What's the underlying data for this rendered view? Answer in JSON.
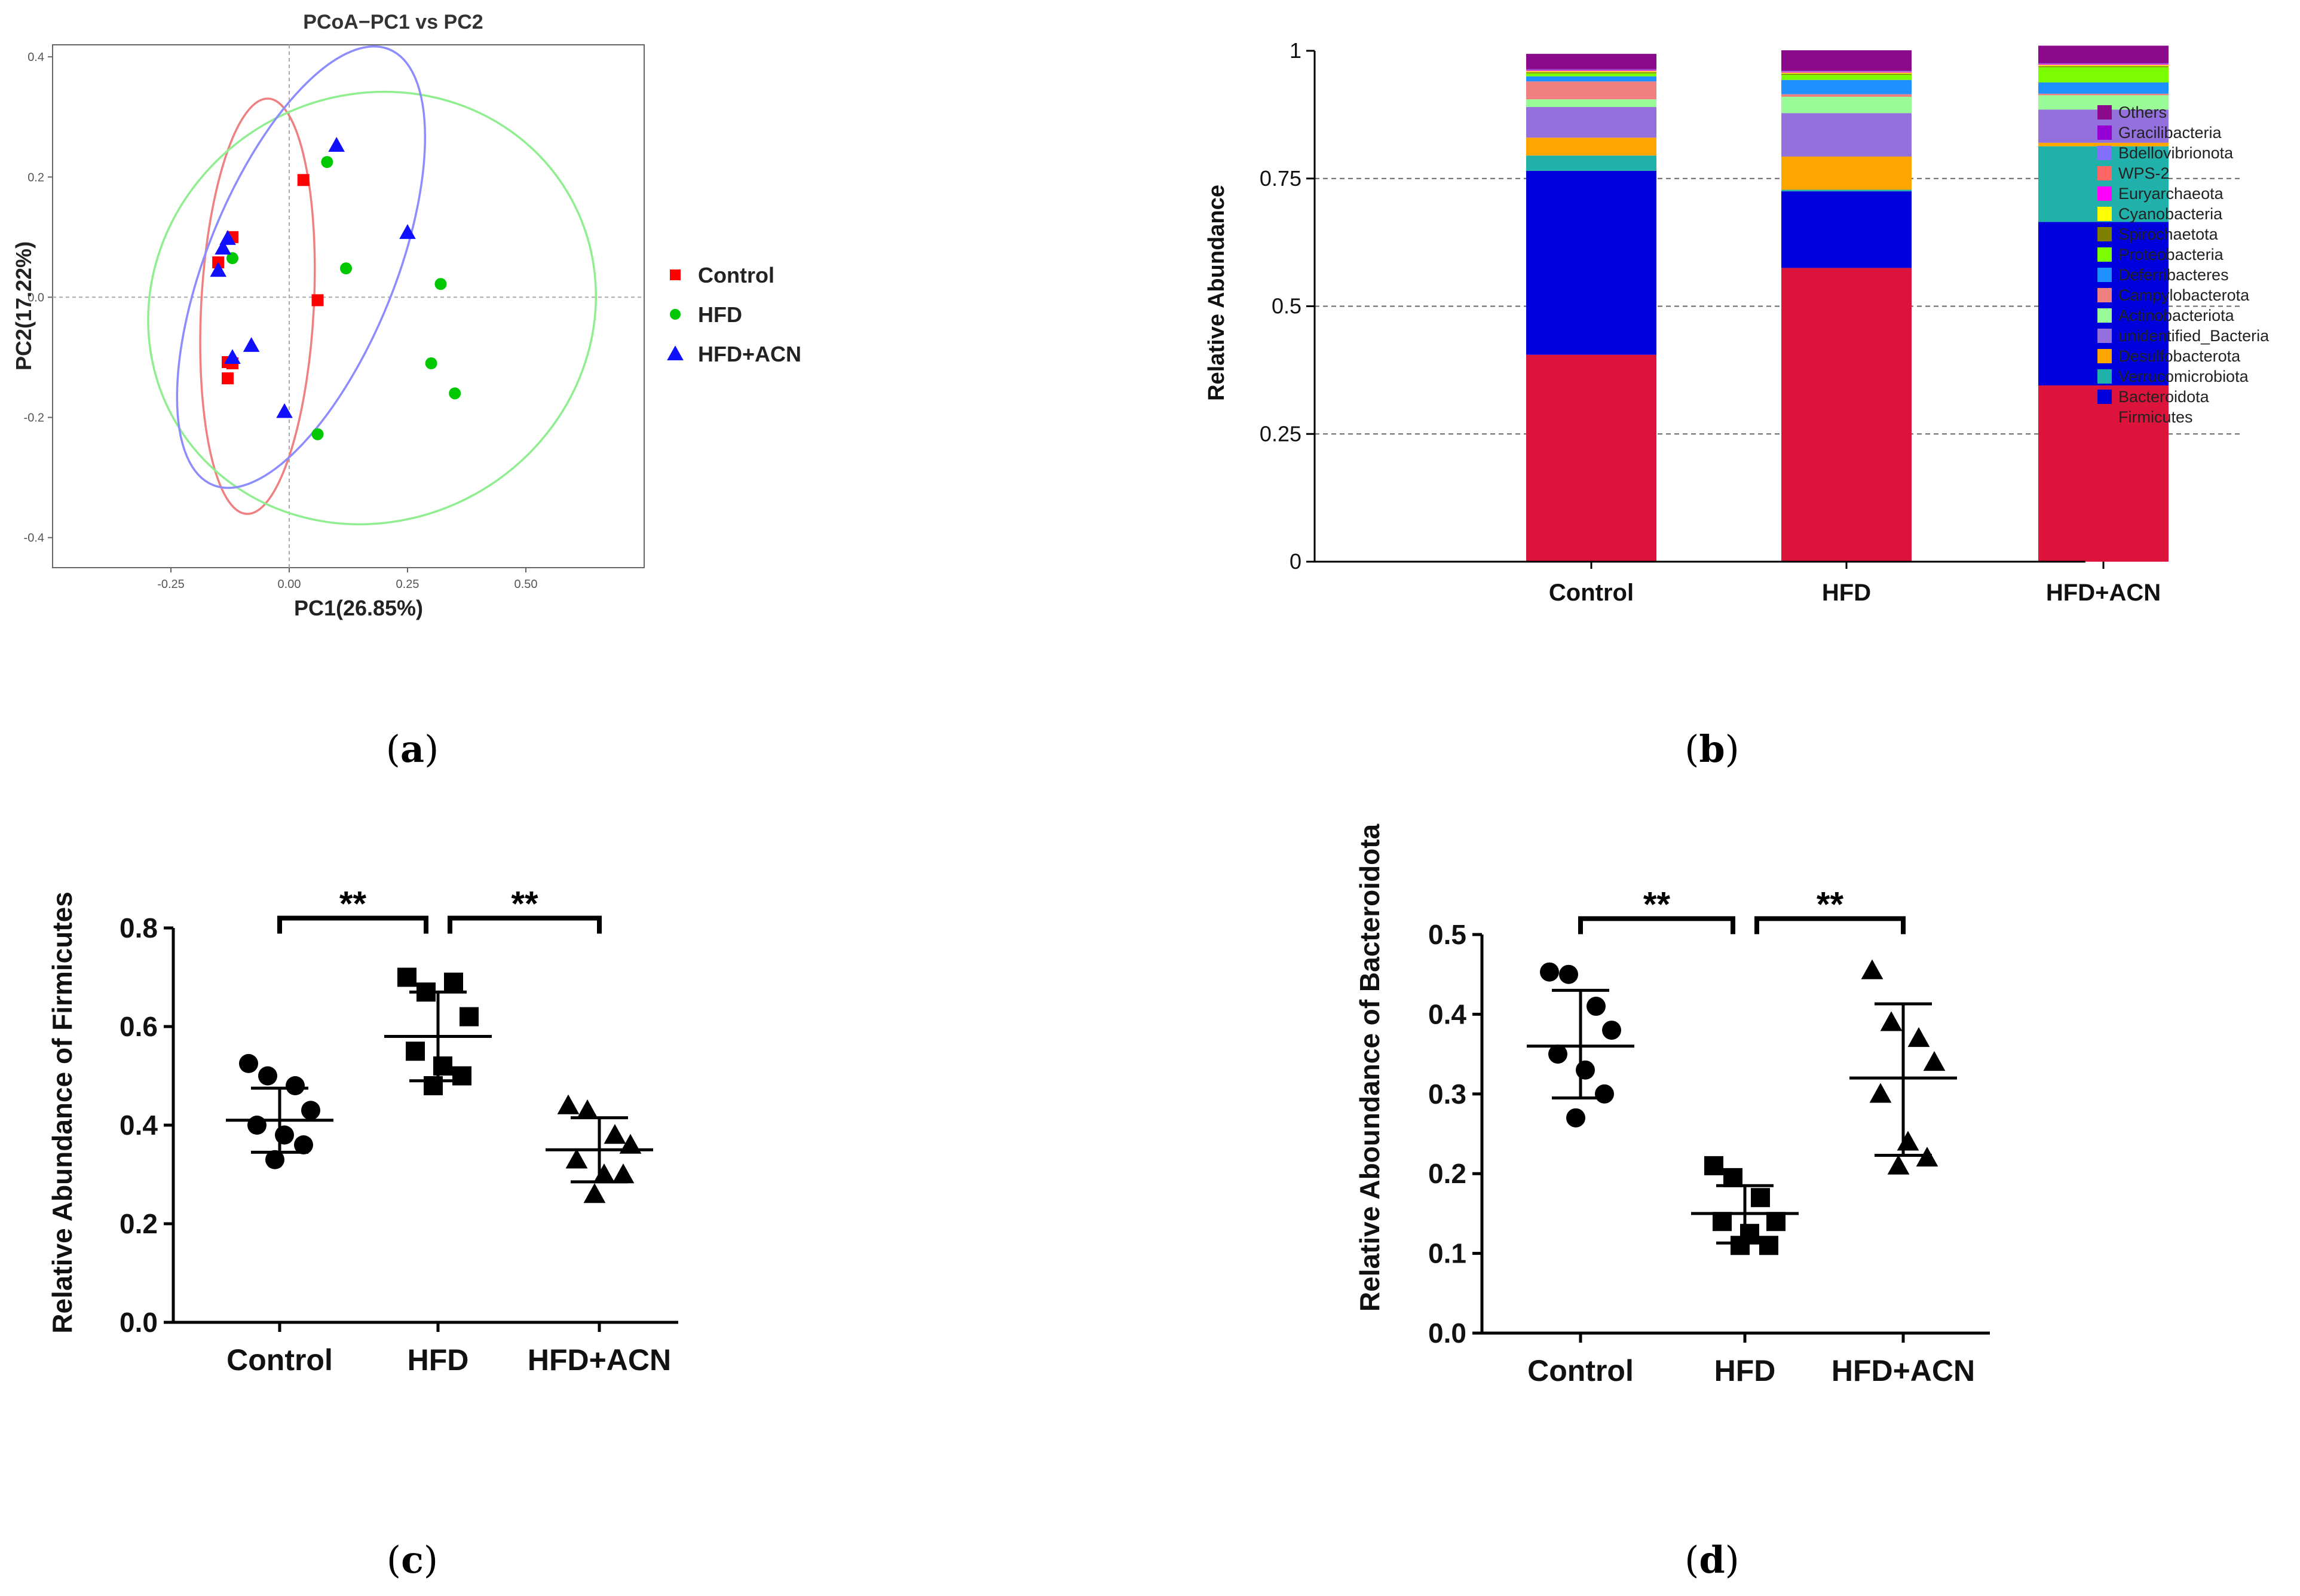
{
  "colors": {
    "control": "#ff0000",
    "hfd": "#00c800",
    "acn": "#1010ff",
    "ellipse_control": "#f08080",
    "ellipse_hfd": "#90ee90",
    "ellipse_acn": "#8c8cff"
  },
  "panel_labels": {
    "a": "a",
    "b": "b",
    "c": "c",
    "d": "d"
  },
  "chart_data": [
    {
      "panel": "a",
      "type": "scatter",
      "title": "PCoA−PC1 vs PC2",
      "xlabel": "PC1(26.85%)",
      "ylabel": "PC2(17.22%)",
      "xlim": [
        -0.5,
        0.75
      ],
      "ylim": [
        -0.45,
        0.42
      ],
      "xticks": [
        -0.25,
        0.0,
        0.25,
        0.5
      ],
      "xtick_labels": [
        "-0.25",
        "0.00",
        "0.25",
        "0.50"
      ],
      "yticks": [
        -0.4,
        -0.2,
        0.0,
        0.2,
        0.4
      ],
      "ytick_labels": [
        "-0.4",
        "-0.2",
        "0.0",
        "0.2",
        "0.4"
      ],
      "reference_lines": {
        "x": 0,
        "y": 0
      },
      "legend_position": "right",
      "series": [
        {
          "name": "Control",
          "marker": "square",
          "color": "#ff0000",
          "x": [
            0.03,
            -0.15,
            -0.12,
            -0.13,
            0.06,
            -0.13,
            -0.12
          ],
          "y": [
            0.195,
            0.058,
            0.1,
            -0.108,
            -0.005,
            -0.135,
            -0.11
          ],
          "ellipse": {
            "cx": -0.067,
            "cy": -0.015,
            "rx": 0.119,
            "ry": 0.346,
            "angle": 3
          }
        },
        {
          "name": "HFD",
          "marker": "circle",
          "color": "#00c800",
          "x": [
            0.08,
            -0.12,
            0.12,
            0.32,
            0.3,
            0.35,
            0.06
          ],
          "y": [
            0.225,
            0.065,
            0.048,
            0.022,
            -0.11,
            -0.16,
            -0.228
          ],
          "ellipse": {
            "cx": 0.175,
            "cy": -0.018,
            "rx": 0.48,
            "ry": 0.354,
            "angle": -29
          }
        },
        {
          "name": "HFD+ACN",
          "marker": "triangle",
          "color": "#1010ff",
          "x": [
            0.1,
            -0.13,
            -0.14,
            0.25,
            -0.08,
            -0.12,
            -0.01,
            -0.15
          ],
          "y": [
            0.253,
            0.098,
            0.082,
            0.108,
            -0.08,
            -0.1,
            -0.19,
            0.045
          ],
          "ellipse": {
            "cx": 0.025,
            "cy": 0.05,
            "rx": 0.199,
            "ry": 0.391,
            "angle": 22
          }
        }
      ]
    },
    {
      "panel": "b",
      "type": "bar",
      "stacked": true,
      "ylabel": "Relative Abundance",
      "ylim": [
        0,
        1
      ],
      "yticks": [
        0,
        0.25,
        0.5,
        0.75,
        1
      ],
      "ytick_labels": [
        "0",
        "0.25",
        "0.5",
        "0.75",
        "1"
      ],
      "categories": [
        "Control",
        "HFD",
        "HFD+ACN"
      ],
      "legend_position": "right",
      "series": [
        {
          "name": "Firmicutes",
          "color": "#dc143c",
          "values": [
            0.405,
            0.575,
            0.345
          ]
        },
        {
          "name": "Bacteroidota",
          "color": "#0000dc",
          "values": [
            0.36,
            0.15,
            0.32
          ]
        },
        {
          "name": "Verrucomicrobiota",
          "color": "#20b2aa",
          "values": [
            0.03,
            0.003,
            0.148
          ]
        },
        {
          "name": "Desulfobacterota",
          "color": "#ffa500",
          "values": [
            0.035,
            0.065,
            0.007
          ]
        },
        {
          "name": "unidentified_Bacteria",
          "color": "#9370db",
          "values": [
            0.06,
            0.085,
            0.065
          ]
        },
        {
          "name": "Actinobacteriota",
          "color": "#98fb98",
          "values": [
            0.015,
            0.032,
            0.028
          ]
        },
        {
          "name": "Campylobacterota",
          "color": "#f08080",
          "values": [
            0.035,
            0.005,
            0.003
          ]
        },
        {
          "name": "Deferribacteres",
          "color": "#1e90ff",
          "values": [
            0.01,
            0.028,
            0.022
          ]
        },
        {
          "name": "Proteobacteria",
          "color": "#7cfc00",
          "values": [
            0.006,
            0.01,
            0.03
          ]
        },
        {
          "name": "Spirochaetota",
          "color": "#808000",
          "values": [
            0.002,
            0.002,
            0.002
          ]
        },
        {
          "name": "Cyanobacteria",
          "color": "#ffff00",
          "values": [
            0.002,
            0.002,
            0.002
          ]
        },
        {
          "name": "Euryarchaeota",
          "color": "#ff00ff",
          "values": [
            0.001,
            0.001,
            0.001
          ]
        },
        {
          "name": "WPS-2",
          "color": "#ff6666",
          "values": [
            0.001,
            0.001,
            0.001
          ]
        },
        {
          "name": "Bdellovibrionota",
          "color": "#8470ff",
          "values": [
            0.001,
            0.001,
            0.001
          ]
        },
        {
          "name": "Gracilibacteria",
          "color": "#9400d3",
          "values": [
            0.001,
            0.001,
            0.001
          ]
        },
        {
          "name": "Others",
          "color": "#8b0a8b",
          "values": [
            0.03,
            0.04,
            0.034
          ]
        }
      ]
    },
    {
      "panel": "c",
      "type": "scatter",
      "ylabel": "Relative Abundance of Firmicutes",
      "ylim": [
        0,
        0.8
      ],
      "yticks": [
        0,
        0.2,
        0.4,
        0.6,
        0.8
      ],
      "ytick_labels": [
        "0.0",
        "0.2",
        "0.4",
        "0.6",
        "0.8"
      ],
      "categories": [
        "Control",
        "HFD",
        "HFD+ACN"
      ],
      "series": [
        {
          "name": "Control",
          "marker": "circle",
          "values": [
            0.525,
            0.5,
            0.48,
            0.43,
            0.4,
            0.38,
            0.36,
            0.33
          ],
          "mean": 0.41,
          "sd_low": 0.345,
          "sd_high": 0.475
        },
        {
          "name": "HFD",
          "marker": "square",
          "values": [
            0.7,
            0.67,
            0.69,
            0.62,
            0.55,
            0.52,
            0.5,
            0.48
          ],
          "mean": 0.58,
          "sd_low": 0.49,
          "sd_high": 0.67
        },
        {
          "name": "HFD+ACN",
          "marker": "triangle",
          "values": [
            0.44,
            0.43,
            0.38,
            0.36,
            0.33,
            0.3,
            0.3,
            0.26
          ],
          "mean": 0.35,
          "sd_low": 0.285,
          "sd_high": 0.415
        }
      ],
      "annotations": [
        {
          "text": "**",
          "from": 0,
          "to": 1,
          "y": 0.82
        },
        {
          "text": "**",
          "from": 1,
          "to": 2,
          "y": 0.82
        }
      ]
    },
    {
      "panel": "d",
      "type": "scatter",
      "ylabel": "Relative Aboundance of  Bacteroidota",
      "ylim": [
        0,
        0.5
      ],
      "yticks": [
        0,
        0.1,
        0.2,
        0.3,
        0.4,
        0.5
      ],
      "ytick_labels": [
        "0.0",
        "0.1",
        "0.2",
        "0.3",
        "0.4",
        "0.5"
      ],
      "categories": [
        "Control",
        "HFD",
        "HFD+ACN"
      ],
      "series": [
        {
          "name": "Control",
          "marker": "circle",
          "values": [
            0.453,
            0.45,
            0.41,
            0.38,
            0.35,
            0.33,
            0.3,
            0.27
          ],
          "mean": 0.36,
          "sd_low": 0.295,
          "sd_high": 0.43
        },
        {
          "name": "HFD",
          "marker": "square",
          "values": [
            0.21,
            0.195,
            0.17,
            0.14,
            0.14,
            0.125,
            0.11,
            0.11
          ],
          "mean": 0.15,
          "sd_low": 0.113,
          "sd_high": 0.185
        },
        {
          "name": "HFD+ACN",
          "marker": "triangle",
          "values": [
            0.455,
            0.39,
            0.37,
            0.34,
            0.3,
            0.24,
            0.22,
            0.21
          ],
          "mean": 0.32,
          "sd_low": 0.223,
          "sd_high": 0.413
        }
      ],
      "annotations": [
        {
          "text": "**",
          "from": 0,
          "to": 1,
          "y": 0.52
        },
        {
          "text": "**",
          "from": 1,
          "to": 2,
          "y": 0.52
        }
      ]
    }
  ]
}
